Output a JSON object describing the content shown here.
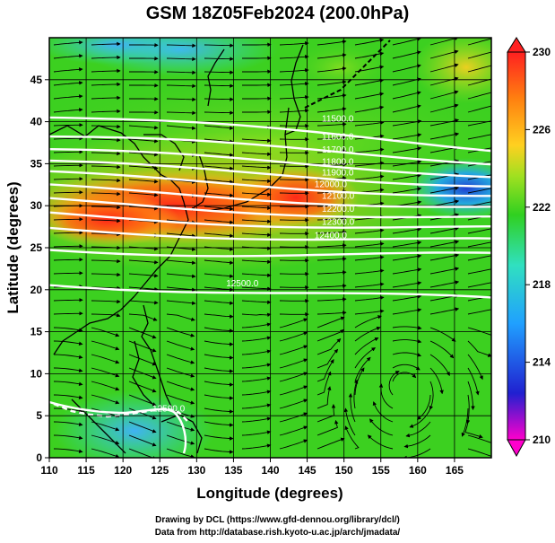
{
  "chart_data": {
    "type": "heatmap",
    "title": "GSM 18Z05Feb2024 (200.0hPa)",
    "xlabel": "Longitude (degrees)",
    "ylabel": "Latitude  (degrees)",
    "xlim": [
      110,
      170
    ],
    "ylim": [
      0,
      50
    ],
    "xticks": [
      110,
      115,
      120,
      125,
      130,
      135,
      140,
      145,
      150,
      155,
      160,
      165
    ],
    "yticks": [
      0,
      5,
      10,
      15,
      20,
      25,
      30,
      35,
      40,
      45
    ],
    "grid": true,
    "colorbar": {
      "min": 210,
      "max": 230,
      "ticks": [
        210,
        214,
        218,
        222,
        226,
        230
      ],
      "colors": [
        "#ff00cc",
        "#2020d0",
        "#20a0ff",
        "#30e0c0",
        "#30d020",
        "#a0e020",
        "#ffd020",
        "#ff8010",
        "#ff2020"
      ]
    },
    "contours": [
      {
        "level": "11500.0",
        "lat_at_110": 40.5,
        "lat_at_170": 37.0
      },
      {
        "level": "11600.0",
        "lat_at_110": 38.0,
        "lat_at_170": 35.5
      },
      {
        "level": "11700.0",
        "lat_at_110": 36.3,
        "lat_at_170": 34.0
      },
      {
        "level": "11800.0",
        "lat_at_110": 34.8,
        "lat_at_170": 32.8
      },
      {
        "level": "11900.0",
        "lat_at_110": 33.5,
        "lat_at_170": 31.5
      },
      {
        "level": "12000.0",
        "lat_at_110": 32.0,
        "lat_at_170": 30.0
      },
      {
        "level": "12100.0",
        "lat_at_110": 30.5,
        "lat_at_170": 28.6
      },
      {
        "level": "12200.0",
        "lat_at_110": 29.0,
        "lat_at_170": 27.2
      },
      {
        "level": "12300.0",
        "lat_at_110": 27.4,
        "lat_at_170": 25.6
      },
      {
        "level": "12400.0",
        "lat_at_110": 25.0,
        "lat_at_170": 23.8
      },
      {
        "level": "12500.0",
        "lat_at_110": 21.0,
        "lat_at_170": 18.5
      }
    ],
    "contour_labels": [
      "11500.0",
      "11600.0",
      "11700.0",
      "11800.0",
      "11900.0",
      "12000.0",
      "12100.0",
      "12200.0",
      "12300.0",
      "12400.0",
      "12500.0",
      "12500.0"
    ]
  },
  "credits": {
    "line1": "Drawing by DCL (https://www.gfd-dennou.org/library/dcl/)",
    "line2": "Data from http://database.rish.kyoto-u.ac.jp/arch/jmadata/"
  }
}
